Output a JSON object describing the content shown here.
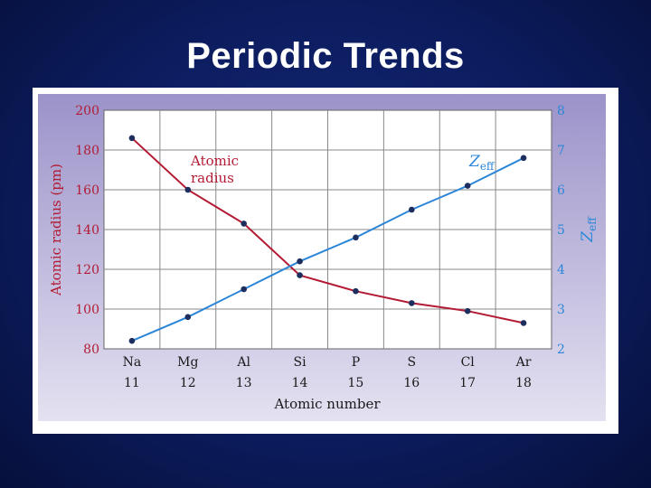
{
  "slide": {
    "title": "Periodic Trends"
  },
  "chart_data": {
    "type": "line",
    "categories": [
      "Na",
      "Mg",
      "Al",
      "Si",
      "P",
      "S",
      "Cl",
      "Ar"
    ],
    "x": [
      11,
      12,
      13,
      14,
      15,
      16,
      17,
      18
    ],
    "xlabel": "Atomic number",
    "ylabel": "Atomic radius (pm)",
    "ylim": [
      80,
      200
    ],
    "yticks": [
      80,
      100,
      120,
      140,
      160,
      180,
      200
    ],
    "y2label": "Z",
    "y2label_sub": "eff",
    "y2lim": [
      2,
      8
    ],
    "y2ticks": [
      2,
      3,
      4,
      5,
      6,
      7,
      8
    ],
    "grid": true,
    "series": [
      {
        "name": "Atomic radius",
        "label_line1": "Atomic",
        "label_line2": "radius",
        "axis": "left",
        "color": "#b31b34",
        "values": [
          186,
          160,
          143,
          117,
          109,
          103,
          99,
          93
        ]
      },
      {
        "name": "Zeff",
        "label_main": "Z",
        "label_sub": "eff",
        "axis": "right",
        "color": "#2b86d8",
        "values": [
          2.2,
          2.8,
          3.5,
          4.2,
          4.8,
          5.5,
          6.1,
          6.8
        ]
      }
    ],
    "marker_color": "#1c2d5e",
    "plot_background": "#ffffff",
    "frame_color": "#a9a2cf"
  }
}
